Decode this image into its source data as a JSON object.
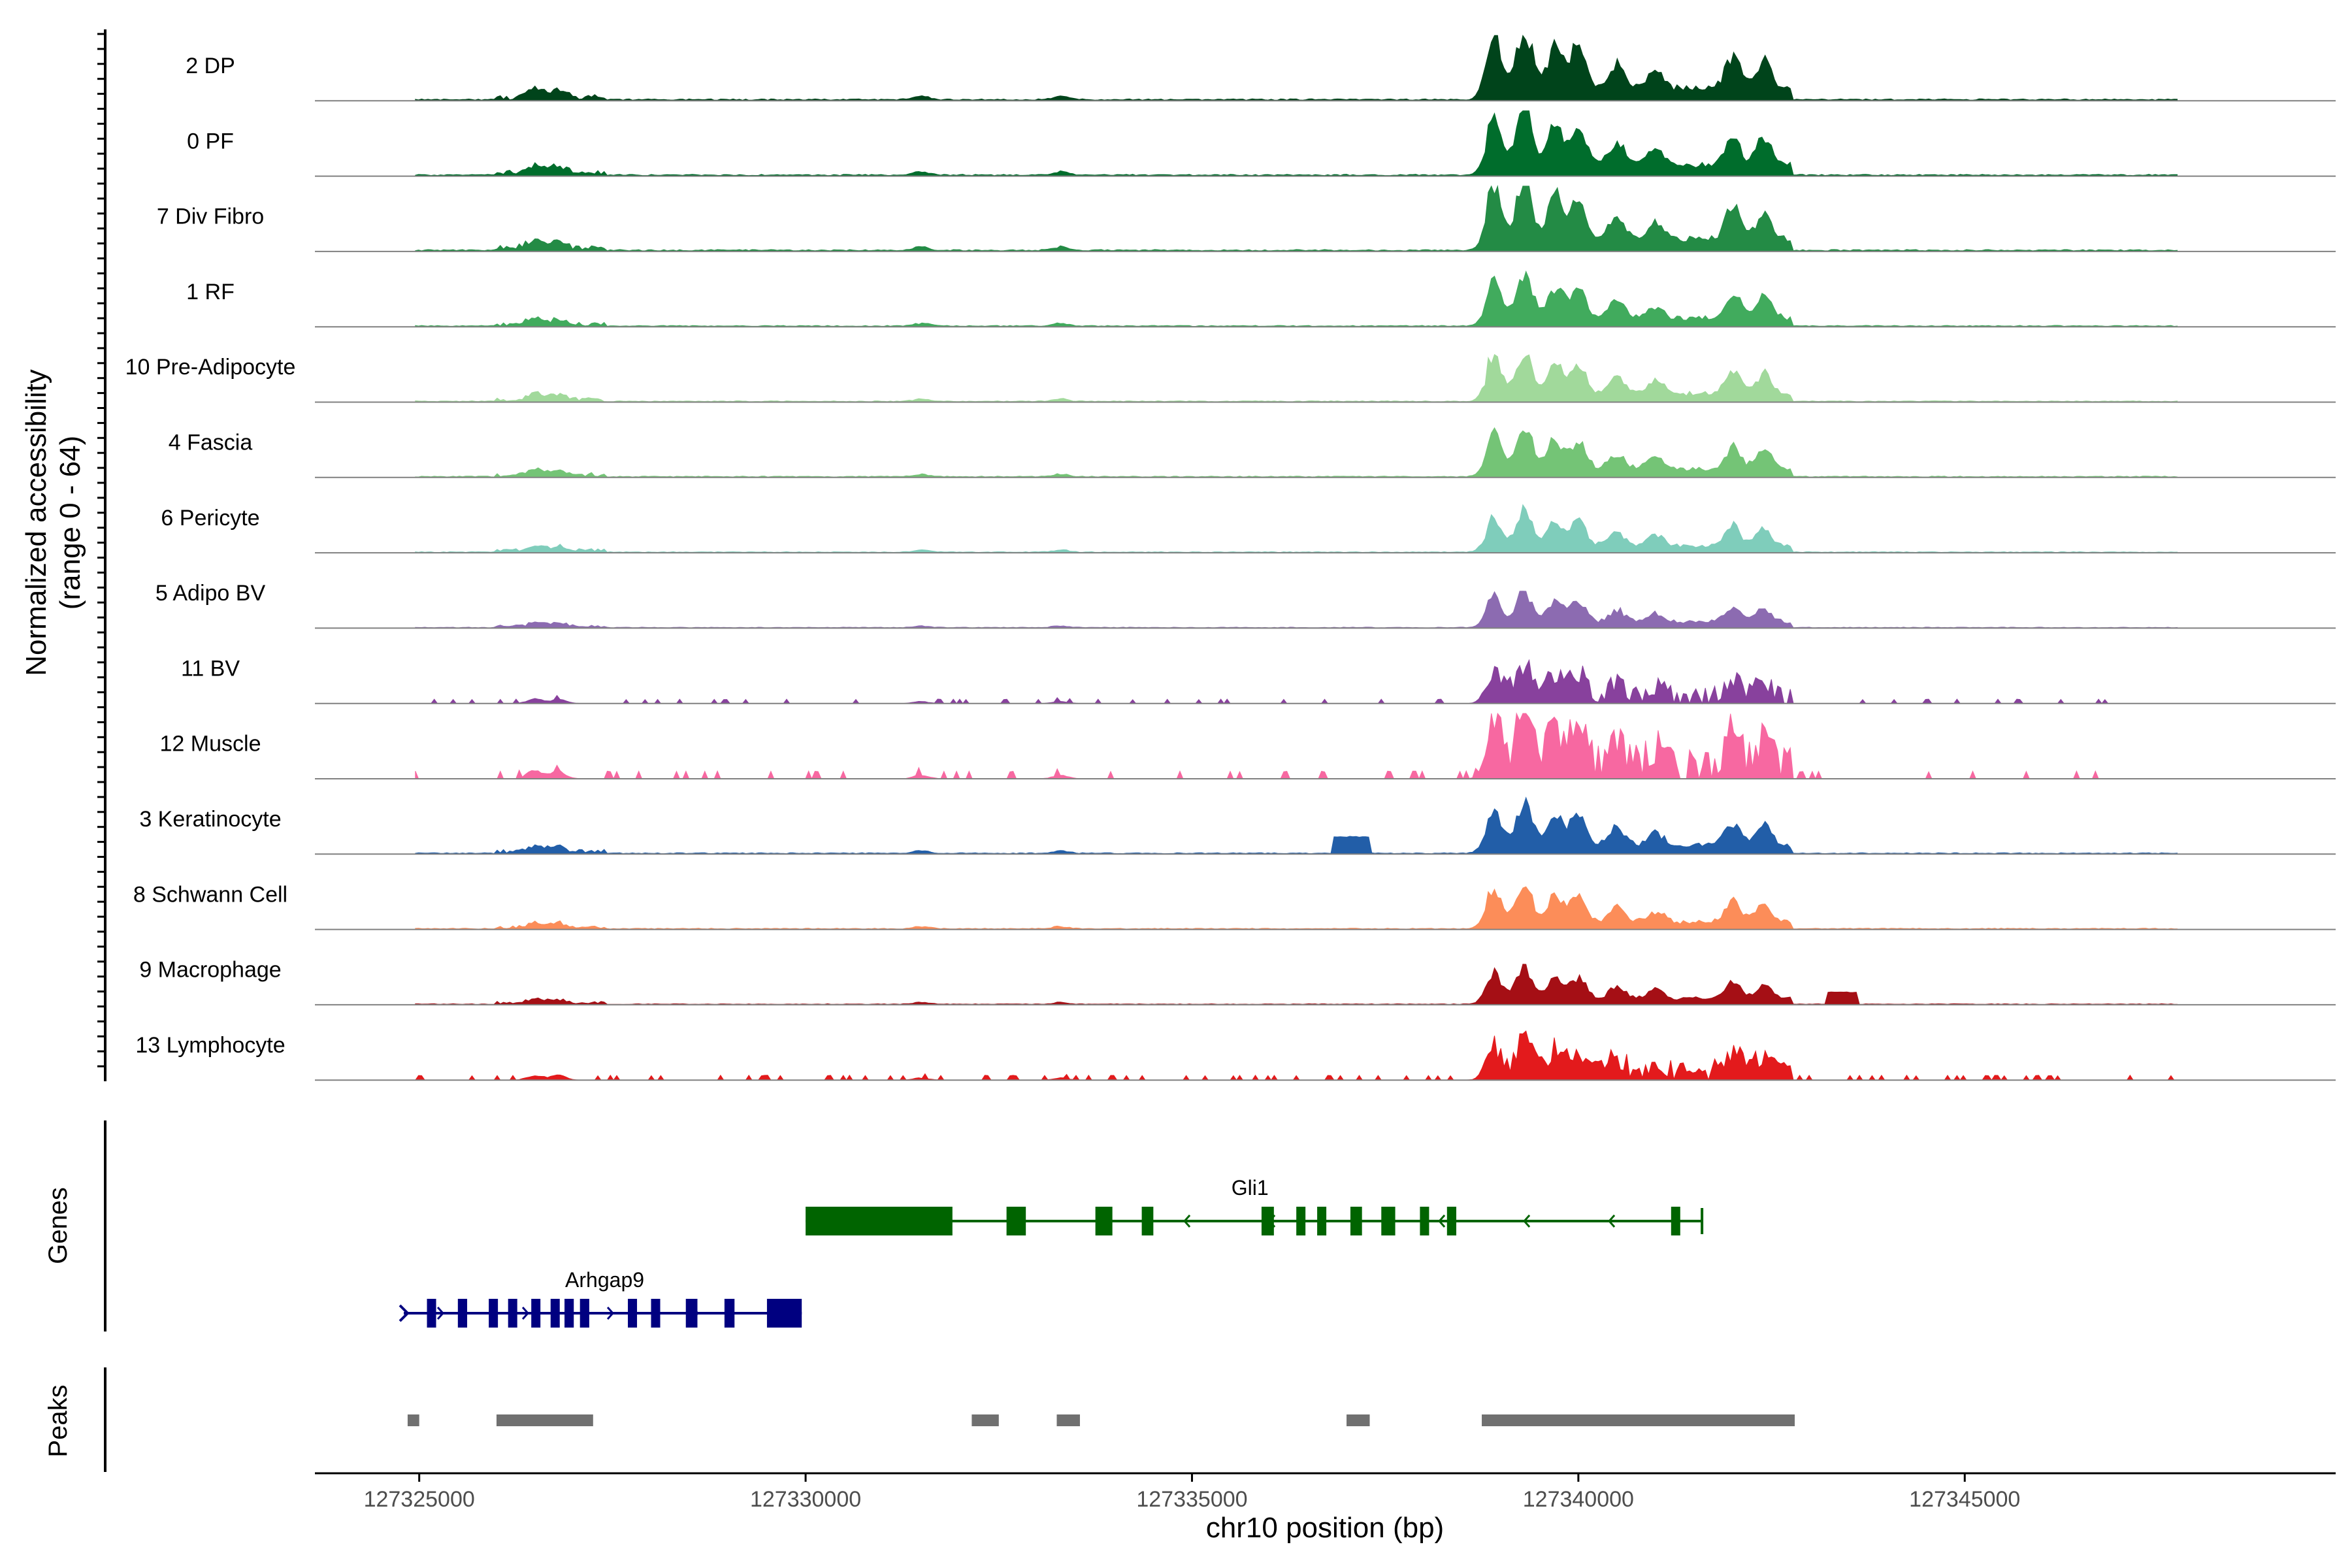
{
  "chart_data": {
    "type": "area",
    "title": "",
    "xlabel": "chr10 position (bp)",
    "ylabel": "Normalized accessibility",
    "ylabel_sub": "(range 0 - 64)",
    "ylim": [
      0,
      64
    ],
    "xlim": [
      127323650,
      127349800
    ],
    "x_ticks": [
      127325000,
      127330000,
      127335000,
      127340000,
      127345000
    ],
    "x_tick_labels": [
      "127325000",
      "127330000",
      "127335000",
      "127340000",
      "127345000"
    ],
    "panel_labels": {
      "genes": "Genes",
      "peaks": "Peaks"
    },
    "tracks": [
      {
        "name": "2 DP",
        "color": "#00441B",
        "profile": "broad",
        "scale": 1.0
      },
      {
        "name": "0 PF",
        "color": "#006D2C",
        "profile": "broad",
        "scale": 0.92
      },
      {
        "name": "7 Div Fibro",
        "color": "#238B45",
        "profile": "broad",
        "scale": 1.0
      },
      {
        "name": "1 RF",
        "color": "#41AB5D",
        "profile": "broad",
        "scale": 0.72
      },
      {
        "name": "10 Pre-Adipocyte",
        "color": "#A1D99B",
        "profile": "broad",
        "scale": 0.7
      },
      {
        "name": "4 Fascia",
        "color": "#74C476",
        "profile": "broad",
        "scale": 0.7
      },
      {
        "name": "6 Pericyte",
        "color": "#7FCDBB",
        "profile": "broad",
        "scale": 0.58
      },
      {
        "name": "5 Adipo BV",
        "color": "#8C6BB1",
        "profile": "broad",
        "scale": 0.5
      },
      {
        "name": "11 BV",
        "color": "#88419D",
        "profile": "sparse",
        "scale": 0.55
      },
      {
        "name": "12 Muscle",
        "color": "#F768A1",
        "profile": "sparse",
        "scale": 1.0
      },
      {
        "name": "3 Keratinocyte",
        "color": "#225EA8",
        "profile": "keratinocyte",
        "scale": 0.72
      },
      {
        "name": "8 Schwann Cell",
        "color": "#FC8D59",
        "profile": "broad",
        "scale": 0.62
      },
      {
        "name": "9 Macrophage",
        "color": "#A50F15",
        "profile": "macrophage",
        "scale": 0.52
      },
      {
        "name": "13 Lymphocyte",
        "color": "#E31A1C",
        "profile": "lymph",
        "scale": 0.62
      }
    ],
    "peak_centers": [
      {
        "x": 127326500,
        "h": 0.14
      },
      {
        "x": 127326800,
        "h": 0.12
      },
      {
        "x": 127331500,
        "h": 0.06
      },
      {
        "x": 127333300,
        "h": 0.06
      },
      {
        "x": 127338900,
        "h": 0.88
      },
      {
        "x": 127339300,
        "h": 1.0
      },
      {
        "x": 127339700,
        "h": 0.72
      },
      {
        "x": 127340000,
        "h": 0.7
      },
      {
        "x": 127340500,
        "h": 0.4
      },
      {
        "x": 127341000,
        "h": 0.3
      },
      {
        "x": 127342000,
        "h": 0.55
      },
      {
        "x": 127342400,
        "h": 0.48
      }
    ],
    "genes": [
      {
        "name": "Gli1",
        "color": "#006400",
        "start": 127330000,
        "end": 127341600,
        "strand": "-",
        "row": 0,
        "exons": [
          [
            127330000,
            127331900
          ],
          [
            127332600,
            127332850
          ],
          [
            127333750,
            127333970
          ],
          [
            127334350,
            127334500
          ],
          [
            127335900,
            127336060
          ],
          [
            127336350,
            127336460
          ],
          [
            127336620,
            127336720
          ],
          [
            127337050,
            127337200
          ],
          [
            127337450,
            127337630
          ],
          [
            127337950,
            127338050
          ],
          [
            127338300,
            127338420
          ],
          [
            127341200,
            127341300
          ]
        ]
      },
      {
        "name": "Arhgap9",
        "color": "#000080",
        "start": 127324800,
        "end": 127329950,
        "strand": "+",
        "row": 1,
        "exons": [
          [
            127325100,
            127325200
          ],
          [
            127325500,
            127325620
          ],
          [
            127325900,
            127325980
          ],
          [
            127326150,
            127326250
          ],
          [
            127326450,
            127326550
          ],
          [
            127326700,
            127326800
          ],
          [
            127326880,
            127327000
          ],
          [
            127327080,
            127327200
          ],
          [
            127327700,
            127327800
          ],
          [
            127328000,
            127328100
          ],
          [
            127328450,
            127328600
          ],
          [
            127328950,
            127329080
          ],
          [
            127329500,
            127329950
          ]
        ]
      }
    ],
    "peaks": [
      [
        127324850,
        127325000
      ],
      [
        127326000,
        127327250
      ],
      [
        127332150,
        127332500
      ],
      [
        127333250,
        127333550
      ],
      [
        127337000,
        127337300
      ],
      [
        127338750,
        127342800
      ]
    ]
  }
}
